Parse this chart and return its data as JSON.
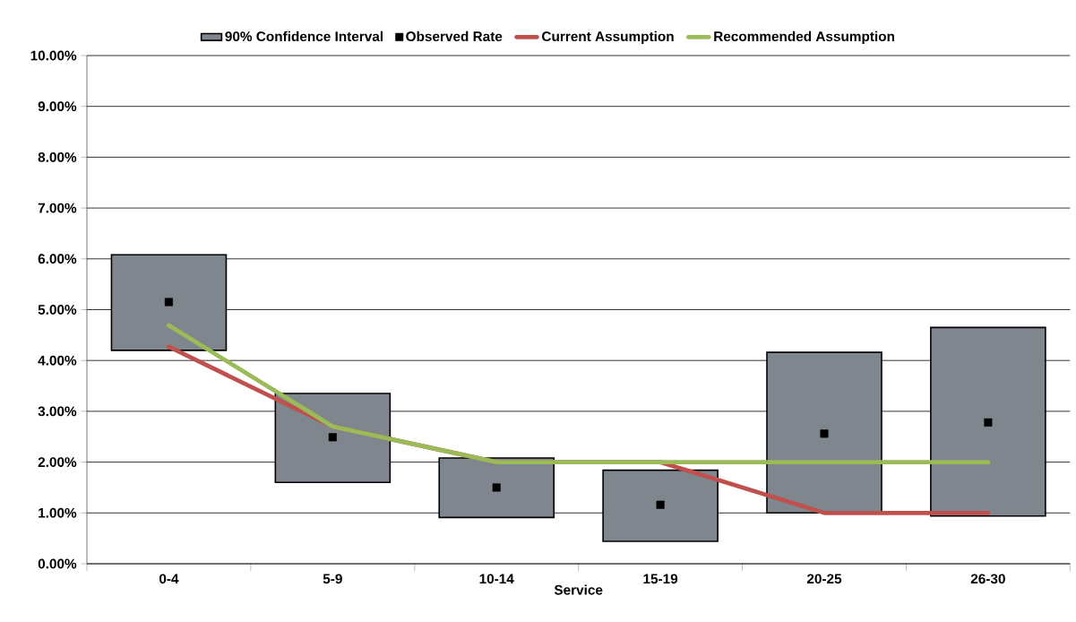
{
  "chart_data": {
    "type": "bar",
    "xlabel": "Service",
    "categories": [
      "0-4",
      "5-9",
      "10-14",
      "15-19",
      "20-25",
      "26-30"
    ],
    "ylim": [
      0,
      10
    ],
    "yticks": [
      {
        "value": 0,
        "label": "0.00%"
      },
      {
        "value": 1,
        "label": "1.00%"
      },
      {
        "value": 2,
        "label": "2.00%"
      },
      {
        "value": 3,
        "label": "3.00%"
      },
      {
        "value": 4,
        "label": "4.00%"
      },
      {
        "value": 5,
        "label": "5.00%"
      },
      {
        "value": 6,
        "label": "6.00%"
      },
      {
        "value": 7,
        "label": "7.00%"
      },
      {
        "value": 8,
        "label": "8.00%"
      },
      {
        "value": 9,
        "label": "9.00%"
      },
      {
        "value": 10,
        "label": "10.00%"
      }
    ],
    "grid": "y",
    "legend": "top",
    "series": [
      {
        "name": "90% Confidence Interval",
        "color": "#80868e",
        "base": [
          4.2,
          1.6,
          0.91,
          0.44,
          1.0,
          0.94
        ],
        "values": [
          1.88,
          1.75,
          1.17,
          1.4,
          3.16,
          3.71
        ]
      },
      {
        "name": "Observed Rate",
        "type": "scatter",
        "marker": "square",
        "color": "#000000",
        "values": [
          5.15,
          2.49,
          1.5,
          1.16,
          2.56,
          2.78
        ]
      },
      {
        "name": "Current Assumption",
        "type": "line",
        "color": "#c0504d",
        "values": [
          4.27,
          2.7,
          2.0,
          2.0,
          1.0,
          1.0
        ]
      },
      {
        "name": "Recommended Assumption",
        "type": "line",
        "color": "#9bbb59",
        "values": [
          4.69,
          2.7,
          2.0,
          2.0,
          2.0,
          2.0
        ]
      }
    ]
  }
}
